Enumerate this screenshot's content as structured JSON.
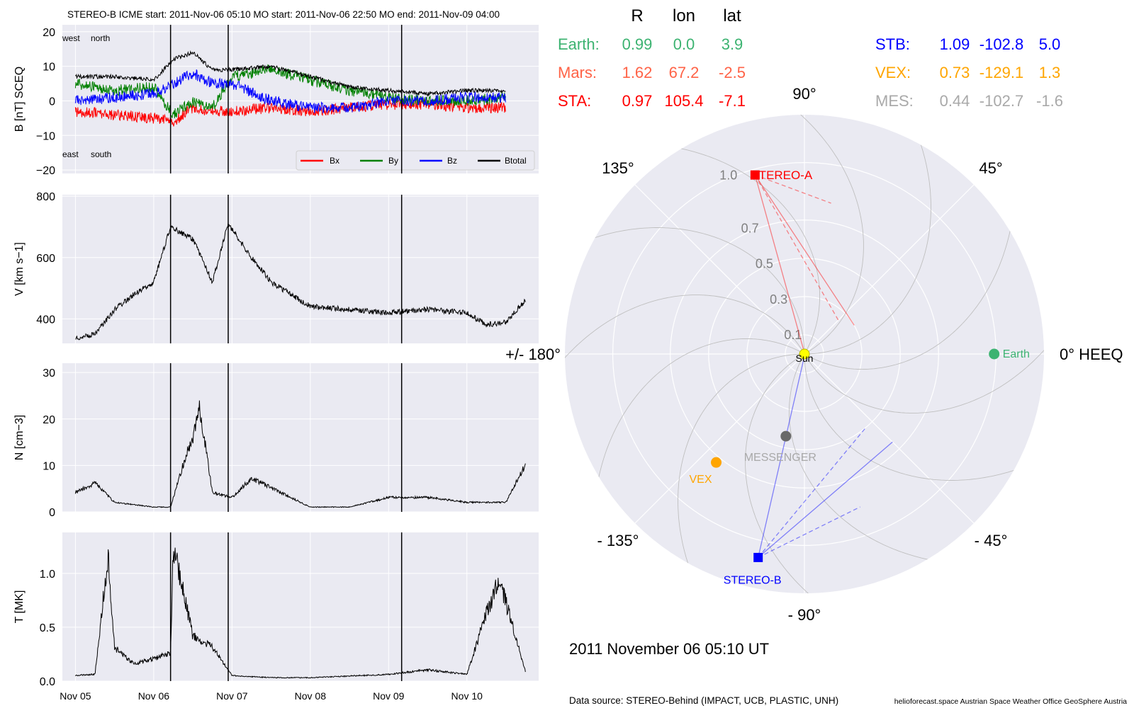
{
  "header": {
    "title": "STEREO-B    ICME start: 2011-Nov-06 05:10   MO start: 2011-Nov-06 22:50   MO end: 2011-Nov-09 04:00"
  },
  "footer": {
    "datetime": "2011 November 06  05:10 UT",
    "source": "Data source: STEREO-Behind (IMPACT, UCB, PLASTIC, UNH)",
    "credits": "helioforecast.space   Austrian Space Weather Office   GeoSphere Austria"
  },
  "colors": {
    "panel_bg": "#eaeaf2",
    "grid": "#ffffff",
    "bx": "#ff0000",
    "by": "#008000",
    "bz": "#0000ff",
    "btotal": "#000000",
    "earth": "#3cb371",
    "mars": "#ff6347",
    "sta": "#ff0000",
    "stb": "#0000ff",
    "vex": "#ffa500",
    "mes": "#a9a9a9",
    "sun": "#ffff00",
    "messenger_dot": "#696969"
  },
  "chart_data": [
    {
      "type": "line",
      "panel": "magnetic-field",
      "ylabel": "B [nT] SCEQ",
      "ylim": [
        -21,
        22
      ],
      "yticks": [
        "20",
        "10",
        "0",
        "−10",
        "−20"
      ],
      "ytick_values": [
        20,
        10,
        0,
        -10,
        -20
      ],
      "annotations": [
        "west",
        "north",
        "east",
        "south"
      ],
      "legend_position": "lower-right",
      "x": [
        "2011-11-05",
        "2011-11-05 12:00",
        "2011-11-06",
        "2011-11-06 06:00",
        "2011-11-06 12:00",
        "2011-11-06 18:00",
        "2011-11-07",
        "2011-11-07 12:00",
        "2011-11-08",
        "2011-11-08 12:00",
        "2011-11-09",
        "2011-11-09 12:00",
        "2011-11-10",
        "2011-11-10 12:00"
      ],
      "series": [
        {
          "name": "Bx",
          "values": [
            -3,
            -4,
            -5,
            -6,
            -2,
            -3,
            -3,
            -2,
            -3,
            -2,
            -1,
            -1,
            -2,
            -2
          ]
        },
        {
          "name": "By",
          "values": [
            5,
            3,
            4,
            -4,
            0,
            -2,
            7,
            9,
            6,
            3,
            1,
            0,
            0,
            1
          ]
        },
        {
          "name": "Bz",
          "values": [
            0,
            1,
            2,
            5,
            8,
            5,
            5,
            0,
            -2,
            -2,
            0,
            0,
            1,
            1
          ]
        },
        {
          "name": "Btotal",
          "values": [
            7,
            7,
            6,
            12,
            14,
            9,
            9,
            10,
            7,
            4,
            3,
            2,
            3,
            3
          ]
        }
      ]
    },
    {
      "type": "line",
      "panel": "speed",
      "ylabel": "V [km s−1]",
      "ylim": [
        320,
        805
      ],
      "yticks": [
        "800",
        "600",
        "400"
      ],
      "ytick_values": [
        800,
        600,
        400
      ],
      "x": [
        "2011-11-05",
        "2011-11-05 06:00",
        "2011-11-05 12:00",
        "2011-11-05 18:00",
        "2011-11-06",
        "2011-11-06 05:10",
        "2011-11-06 12:00",
        "2011-11-06 18:00",
        "2011-11-06 22:50",
        "2011-11-07 06:00",
        "2011-11-07 12:00",
        "2011-11-08",
        "2011-11-08 12:00",
        "2011-11-09",
        "2011-11-09 12:00",
        "2011-11-10",
        "2011-11-10 06:00",
        "2011-11-10 12:00",
        "2011-11-10 18:00"
      ],
      "values": [
        335,
        350,
        430,
        480,
        520,
        700,
        660,
        520,
        710,
        600,
        520,
        440,
        430,
        420,
        430,
        420,
        380,
        390,
        460
      ]
    },
    {
      "type": "line",
      "panel": "density",
      "ylabel": "N [cm−3]",
      "ylim": [
        0,
        32
      ],
      "yticks": [
        "30",
        "20",
        "10",
        "0"
      ],
      "ytick_values": [
        30,
        20,
        10,
        0
      ],
      "x": [
        "2011-11-05",
        "2011-11-05 06:00",
        "2011-11-05 12:00",
        "2011-11-06",
        "2011-11-06 05:10",
        "2011-11-06 10:00",
        "2011-11-06 12:00",
        "2011-11-06 14:00",
        "2011-11-06 18:00",
        "2011-11-07",
        "2011-11-07 06:00",
        "2011-11-08",
        "2011-11-08 12:00",
        "2011-11-09",
        "2011-11-09 12:00",
        "2011-11-10",
        "2011-11-10 12:00",
        "2011-11-10 18:00"
      ],
      "values": [
        4,
        6,
        2,
        1,
        1,
        12,
        15,
        22,
        4,
        3,
        7,
        1,
        1,
        3,
        3,
        2,
        2,
        10
      ]
    },
    {
      "type": "line",
      "panel": "temperature",
      "ylabel": "T [MK]",
      "ylim": [
        0,
        1.38
      ],
      "yticks": [
        "1.0",
        "0.5",
        "0.0"
      ],
      "ytick_values": [
        1.0,
        0.5,
        0.0
      ],
      "xticks": [
        "Nov 05",
        "Nov 06",
        "Nov 07",
        "Nov 08",
        "Nov 09",
        "Nov 10"
      ],
      "x": [
        "2011-11-05",
        "2011-11-05 06:00",
        "2011-11-05 10:00",
        "2011-11-05 12:00",
        "2011-11-05 18:00",
        "2011-11-06",
        "2011-11-06 05:10",
        "2011-11-06 06:00",
        "2011-11-06 12:00",
        "2011-11-06 18:00",
        "2011-11-07",
        "2011-11-07 12:00",
        "2011-11-08",
        "2011-11-09",
        "2011-11-09 12:00",
        "2011-11-10",
        "2011-11-10 06:00",
        "2011-11-10 10:00",
        "2011-11-10 18:00"
      ],
      "values": [
        0.05,
        0.06,
        1.12,
        0.3,
        0.15,
        0.2,
        0.25,
        1.2,
        0.4,
        0.3,
        0.05,
        0.03,
        0.03,
        0.06,
        0.1,
        0.06,
        0.6,
        0.9,
        0.08
      ]
    },
    {
      "type": "scatter",
      "panel": "polar-positions",
      "header": [
        "R",
        "lon",
        "lat"
      ],
      "radial_ticks": [
        "0.1",
        "0.3",
        "0.5",
        "0.7",
        "1.0"
      ],
      "radial_tick_values": [
        0.1,
        0.3,
        0.5,
        0.7,
        1.0
      ],
      "angle_labels": [
        "0° HEEQ",
        "45°",
        "90°",
        "135°",
        "+/- 180°",
        "- 135°",
        "- 90°",
        "- 45°"
      ],
      "angle_values": [
        0,
        45,
        90,
        135,
        180,
        -135,
        -90,
        -45
      ],
      "bodies": [
        {
          "name": "Earth:",
          "label": "Earth",
          "r": "0.99",
          "lon": "0.0",
          "lat": "3.9",
          "rv": 0.99,
          "lonv": 0.0,
          "marker": "circle",
          "color": "#3cb371"
        },
        {
          "name": "Mars:",
          "label": "",
          "r": "1.62",
          "lon": "67.2",
          "lat": "-2.5",
          "rv": 1.62,
          "lonv": 67.2,
          "marker": "none",
          "color": "#ff6347"
        },
        {
          "name": "STA:",
          "label": "STEREO-A",
          "r": "0.97",
          "lon": "105.4",
          "lat": "-7.1",
          "rv": 0.97,
          "lonv": 105.4,
          "marker": "square",
          "color": "#ff0000"
        },
        {
          "name": "STB:",
          "label": "STEREO-B",
          "r": "1.09",
          "lon": "-102.8",
          "lat": "5.0",
          "rv": 1.09,
          "lonv": -102.8,
          "marker": "square",
          "color": "#0000ff"
        },
        {
          "name": "VEX:",
          "label": "VEX",
          "r": "0.73",
          "lon": "-129.1",
          "lat": "1.3",
          "rv": 0.73,
          "lonv": -129.1,
          "marker": "circle",
          "color": "#ffa500"
        },
        {
          "name": "MES:",
          "label": "MESSENGER",
          "r": "0.44",
          "lon": "-102.7",
          "lat": "-1.6",
          "rv": 0.44,
          "lonv": -102.7,
          "marker": "circle",
          "color": "#696969"
        }
      ],
      "sun_label": "Sun"
    }
  ]
}
